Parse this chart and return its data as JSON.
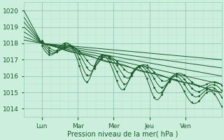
{
  "xlabel": "Pression niveau de la mer( hPa )",
  "day_labels": [
    "Lun",
    "Mar",
    "Mer",
    "Jeu",
    "Ven"
  ],
  "ylim": [
    1013.5,
    1020.5
  ],
  "yticks": [
    1014,
    1015,
    1016,
    1017,
    1018,
    1019,
    1020
  ],
  "xlim": [
    0,
    120
  ],
  "day_positions": [
    0,
    24,
    48,
    72,
    96,
    120
  ],
  "bg_color": "#cceedd",
  "grid_major_color": "#99ccbb",
  "grid_minor_color": "#bbddd0",
  "line_color": "#1a5c2a",
  "n_hours": 121
}
